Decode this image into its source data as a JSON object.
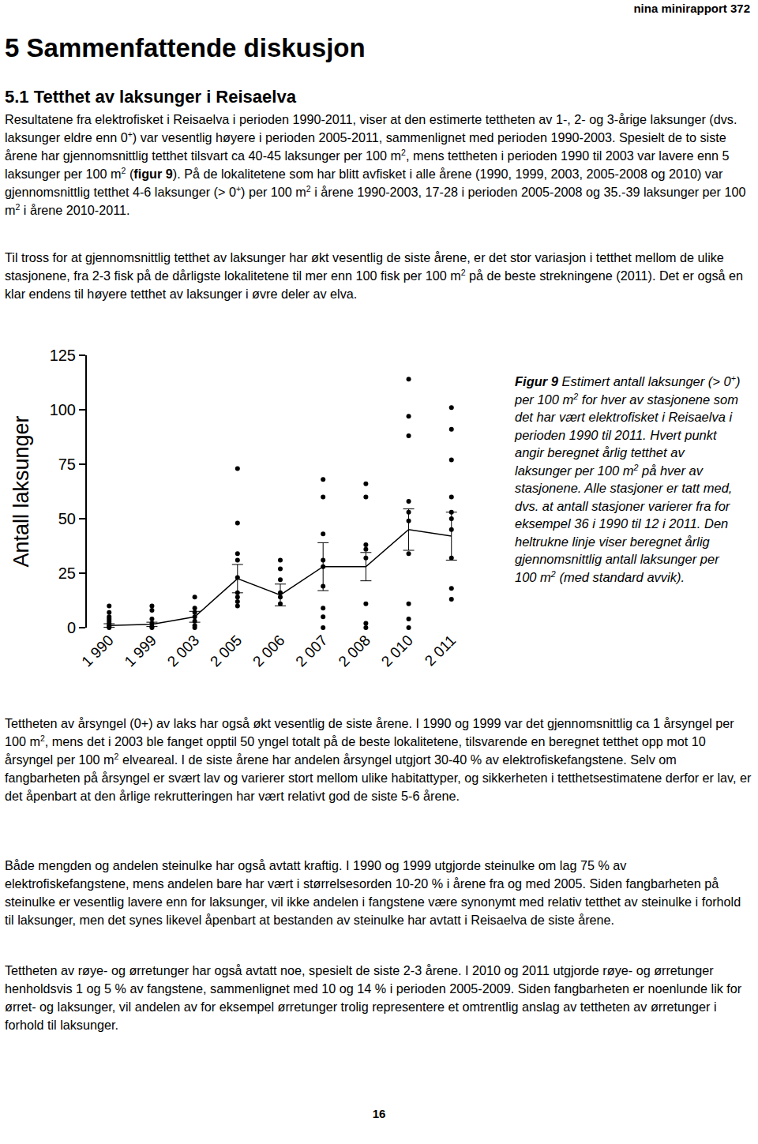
{
  "header": "nina minirapport 372",
  "heading": "5 Sammenfattende diskusjon",
  "section": "5.1 Tetthet av laksunger i Reisaelva",
  "paragraphs_before": [
    [
      "Resultatene fra elektrofisket i Reisaelva i perioden 1990-2011, viser at den estimerte tettheten av 1-, 2- og 3-årige laksunger (dvs. laksunger eldre enn 0",
      {
        "sup": "+"
      },
      ") var vesentlig høyere i perioden 2005-2011, sammenlignet med perioden 1990-2003. Spesielt de to siste årene har gjennomsnittlig tetthet tilsvart ca 40-45 laksunger per 100 m",
      {
        "sup": "2"
      },
      ", mens tettheten i perioden 1990 til 2003 var lavere enn 5 laksunger per 100 m",
      {
        "sup": "2"
      },
      " (",
      {
        "b": "figur 9"
      },
      "). På de lokalitetene som har blitt avfisket i alle årene (1990, 1999, 2003, 2005-2008 og 2010) var gjennomsnittlig tetthet 4-6 laksunger (> 0",
      {
        "sup": "+"
      },
      ") per 100 m",
      {
        "sup": "2"
      },
      " i årene 1990-2003, 17-28 i perioden 2005-2008 og 35.-39 laksunger per 100 m",
      {
        "sup": "2"
      },
      " i årene 2010-2011."
    ],
    [
      "Til tross for at gjennomsnittlig tetthet av laksunger har økt vesentlig de siste årene, er det stor variasjon i tetthet mellom de ulike stasjonene, fra 2-3 fisk på de dårligste lokalitetene til mer enn 100 fisk per 100 m",
      {
        "sup": "2"
      },
      " på de beste strekningene (2011). Det er også en klar endens til høyere tetthet av laksunger i øvre deler av elva."
    ]
  ],
  "chart_data": {
    "type": "scatter",
    "ylabel": "Antall laksunger",
    "categories": [
      "1 990",
      "1 999",
      "2 003",
      "2 005",
      "2 006",
      "2 007",
      "2 008",
      "2 010",
      "2 011"
    ],
    "points": [
      [
        10,
        7,
        5,
        4,
        3,
        2,
        1,
        0.5,
        0
      ],
      [
        10,
        8,
        4,
        2,
        0.5,
        0
      ],
      [
        14,
        9,
        7,
        5,
        3,
        1,
        0
      ],
      [
        73,
        48,
        34,
        31,
        23,
        16,
        14,
        12,
        10
      ],
      [
        31,
        27,
        22,
        16,
        14,
        11
      ],
      [
        68,
        60,
        43,
        31,
        28,
        19,
        9,
        5,
        0
      ],
      [
        66,
        60,
        38,
        36,
        32,
        11,
        2,
        0
      ],
      [
        114,
        97,
        88,
        58,
        53,
        49,
        34,
        11,
        4,
        0
      ],
      [
        101,
        91,
        77,
        60,
        53,
        50,
        45,
        32,
        18,
        13
      ]
    ],
    "mean": [
      1,
      1.5,
      5,
      22.5,
      15,
      28,
      28,
      45,
      42
    ],
    "sd": [
      0.8,
      1,
      2.5,
      6.5,
      5,
      11,
      6.5,
      9.5,
      11
    ],
    "ylim": [
      0,
      125
    ],
    "yticks": [
      0,
      25,
      50,
      75,
      100,
      125
    ],
    "color": "#000000",
    "marker": "circle",
    "line_style": "solid",
    "grid": false
  },
  "caption": [
    {
      "b": "Figur 9"
    },
    " Estimert antall laksunger (> 0",
    {
      "sup": "+"
    },
    ") per 100 m",
    {
      "sup": "2"
    },
    " for hver av stasjonene som det har vært elektrofisket i Reisaelva i perioden 1990 til 2011. Hvert punkt angir beregnet årlig tetthet av laksunger per 100 m",
    {
      "sup": "2"
    },
    " på hver av stasjonene. Alle stasjoner er tatt med, dvs. at antall stasjoner varierer fra for eksempel 36 i 1990 til 12 i 2011. Den heltrukne linje viser beregnet årlig gjennomsnittlig antall laksunger per 100 m",
    {
      "sup": "2"
    },
    " (med standard avvik)."
  ],
  "paragraphs_after": [
    [
      "Tettheten av årsyngel (0+) av laks har også økt vesentlig de siste årene. I 1990 og 1999 var det gjennomsnittlig ca 1 årsyngel per 100 m",
      {
        "sup": "2"
      },
      ", mens det i 2003 ble fanget opptil 50 yngel totalt på de beste lokalitetene, tilsvarende en beregnet tetthet opp mot 10 årsyngel per 100 m",
      {
        "sup": "2"
      },
      " elveareal. I de siste årene har andelen årsyngel utgjort 30-40 % av elektrofiskefangstene. Selv om fangbarheten på årsyngel er svært lav og varierer stort mellom ulike habitattyper, og sikkerheten i tetthetsestimatene derfor er lav, er det åpenbart at den årlige rekrutteringen har vært relativt god de siste 5-6 årene."
    ],
    [
      "Både mengden og andelen steinulke har også avtatt kraftig. I 1990 og 1999 utgjorde steinulke om lag 75 % av elektrofiskefangstene, mens andelen bare har vært i størrelsesorden 10-20 % i årene fra og med 2005. Siden fangbarheten på steinulke er vesentlig lavere enn for laksunger, vil ikke andelen i fangstene være synonymt med relativ tetthet av steinulke i forhold til laksunger, men det synes likevel åpenbart at bestanden av steinulke har avtatt i Reisaelva de siste årene."
    ],
    [
      "Tettheten av røye- og ørretunger har også avtatt noe, spesielt de siste 2-3 årene. I 2010 og 2011 utgjorde røye- og ørretunger henholdsvis 1 og 5 % av fangstene, sammenlignet med 10 og 14 % i perioden 2005-2009. Siden fangbarheten er noenlunde lik for ørret- og laksunger, vil andelen av for eksempel ørretunger trolig representere et omtrentlig anslag av tettheten av ørretunger i forhold til laksunger."
    ]
  ],
  "page_number": "16"
}
